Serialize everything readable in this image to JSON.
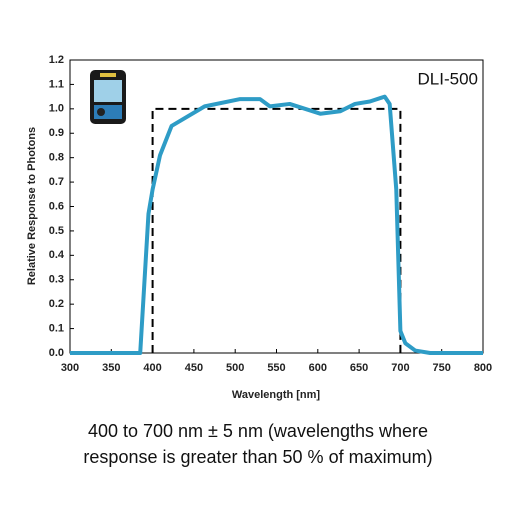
{
  "chart_data": {
    "type": "line",
    "annotation": "DLI-500",
    "x_label": "Wavelength [nm]",
    "y_label": "Relative Response to Photons",
    "xlim": [
      300,
      800
    ],
    "xticks": [
      300,
      350,
      400,
      450,
      500,
      550,
      600,
      650,
      700,
      750,
      800
    ],
    "ylim": [
      0,
      1.2
    ],
    "yticks": [
      {
        "value": 0,
        "label": "0.0"
      },
      0.1,
      0.2,
      0.3,
      0.4,
      0.5,
      0.6,
      0.7,
      0.8,
      0.9,
      {
        "value": 1,
        "label": "1.0"
      },
      1.1,
      1.2
    ],
    "series": [
      {
        "color": "#000000",
        "dash": true,
        "x": [
          400,
          400,
          700,
          700
        ],
        "values": [
          0,
          1,
          1,
          0
        ]
      },
      {
        "color": "#2e9cc6",
        "dash": false,
        "x": [
          300,
          385,
          395,
          400,
          409,
          423,
          463,
          506,
          530,
          542,
          566,
          603,
          627,
          645,
          663,
          681,
          687,
          695,
          700,
          706,
          718,
          736,
          800
        ],
        "values": [
          0,
          0,
          0.57,
          0.67,
          0.81,
          0.93,
          1.01,
          1.04,
          1.04,
          1.01,
          1.02,
          0.98,
          0.99,
          1.02,
          1.03,
          1.05,
          1.02,
          0.67,
          0.09,
          0.04,
          0.01,
          0,
          0
        ]
      }
    ],
    "caption": [
      "400 to 700 nm ± 5 nm (wavelengths where",
      "response is greater than 50 % of maximum)"
    ]
  }
}
